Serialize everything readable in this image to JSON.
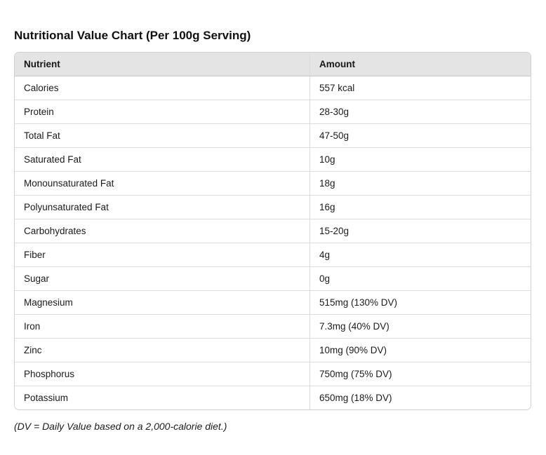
{
  "page": {
    "title": "Nutritional Value Chart (Per 100g Serving)",
    "footnote": "(DV = Daily Value based on a 2,000-calorie diet.)"
  },
  "chart_data": {
    "type": "table",
    "title": "Nutritional Value Chart (Per 100g Serving)",
    "columns": [
      "Nutrient",
      "Amount"
    ],
    "rows": [
      [
        "Calories",
        "557 kcal"
      ],
      [
        "Protein",
        "28-30g"
      ],
      [
        "Total Fat",
        "47-50g"
      ],
      [
        "Saturated Fat",
        "10g"
      ],
      [
        "Monounsaturated Fat",
        "18g"
      ],
      [
        "Polyunsaturated Fat",
        "16g"
      ],
      [
        "Carbohydrates",
        "15-20g"
      ],
      [
        "Fiber",
        "4g"
      ],
      [
        "Sugar",
        "0g"
      ],
      [
        "Magnesium",
        "515mg (130% DV)"
      ],
      [
        "Iron",
        "7.3mg (40% DV)"
      ],
      [
        "Zinc",
        "10mg (90% DV)"
      ],
      [
        "Phosphorus",
        "750mg (75% DV)"
      ],
      [
        "Potassium",
        "650mg (18% DV)"
      ]
    ],
    "footnote": "(DV = Daily Value based on a 2,000-calorie diet.)",
    "layout": {
      "header_row": true,
      "grid": "horizontal-and-column-divider"
    }
  },
  "colors": {
    "header_bg": "#e4e4e4",
    "outer_border": "#d0d0d0",
    "header_divider": "#c6c6c6",
    "row_divider": "#dcdcdc",
    "text": "#1a1a1a",
    "background": "#ffffff"
  }
}
